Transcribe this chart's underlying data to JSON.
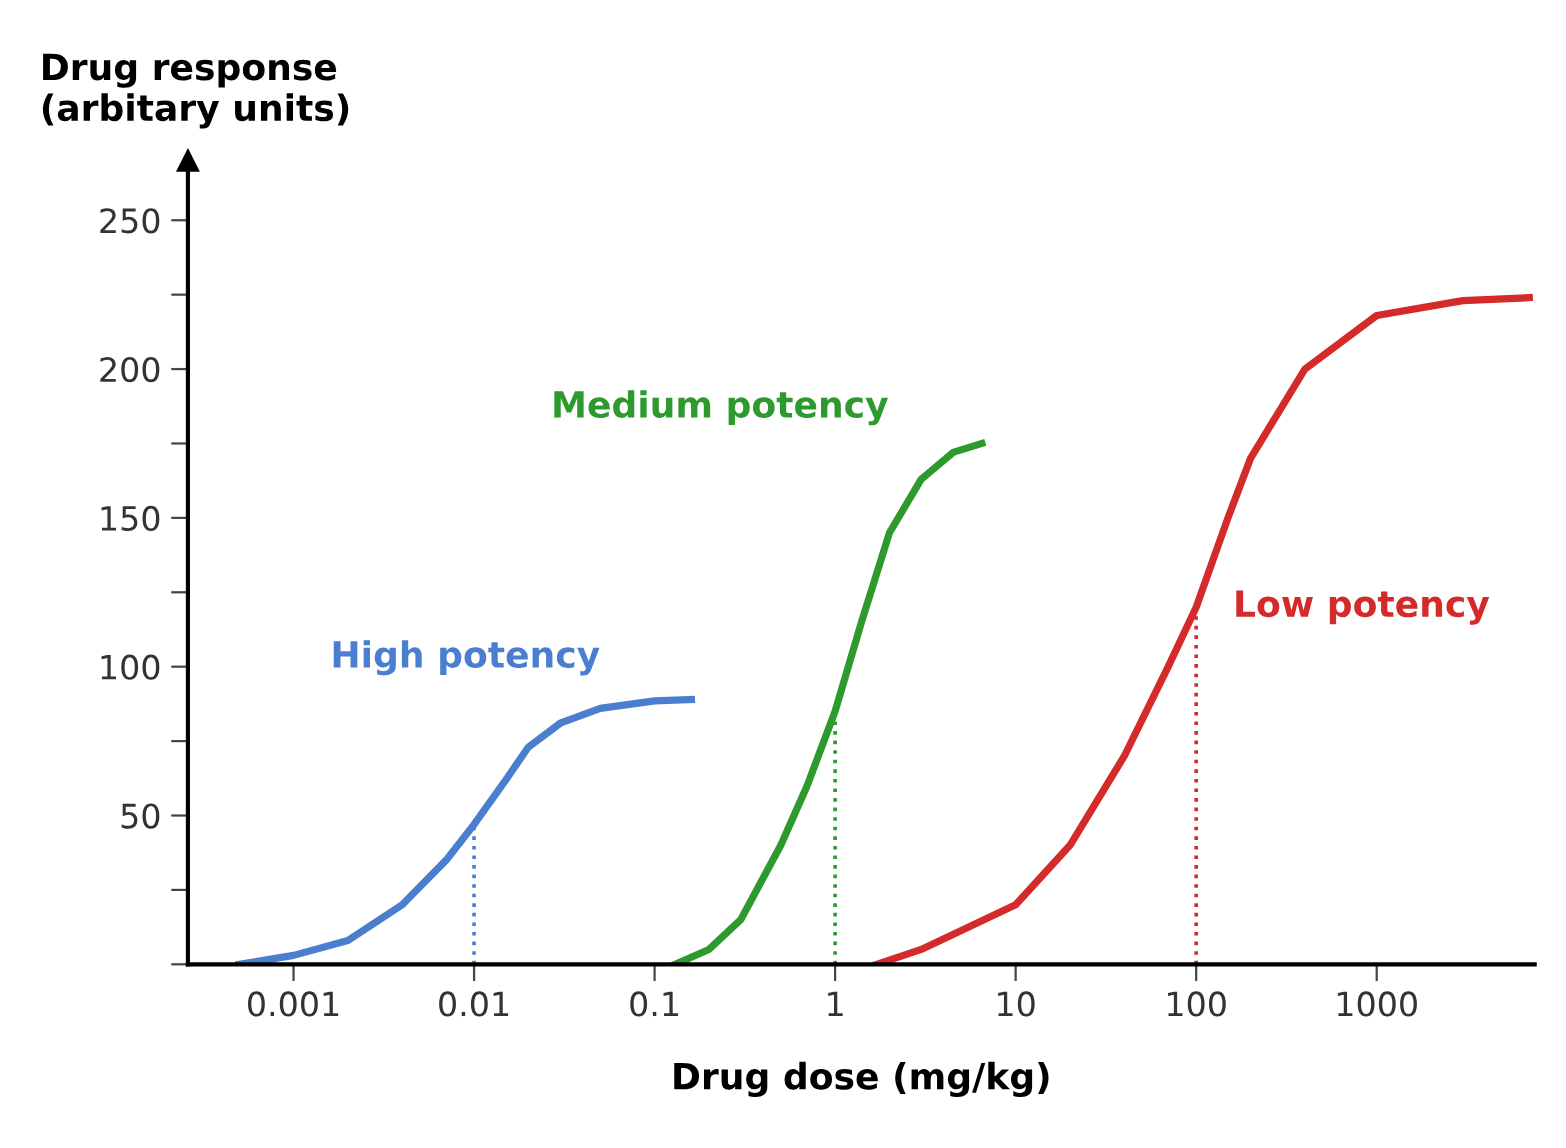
{
  "chart_data": {
    "type": "line",
    "xlabel": "Drug dose (mg/kg)",
    "ylabel": "Drug response\n(arbitary units)",
    "log": "x",
    "grid": false,
    "legend": false,
    "marker": "none",
    "line_style": "solid",
    "xlim": [
      0.00026,
      7500
    ],
    "xticks": [
      0.001,
      0.01,
      0.1,
      1,
      10,
      100,
      1000
    ],
    "ylim": [
      0,
      270
    ],
    "yticks": [
      {
        "value": 0,
        "label": null
      },
      {
        "value": 25,
        "label": null
      },
      50,
      {
        "value": 75,
        "label": null
      },
      100,
      {
        "value": 125,
        "label": null
      },
      150,
      {
        "value": 175,
        "label": null
      },
      200,
      {
        "value": 225,
        "label": null
      },
      250
    ],
    "series": [
      {
        "name": "High potency",
        "color": "#4a7fcf",
        "x": [
          0.0005,
          0.001,
          0.002,
          0.004,
          0.007,
          0.01,
          0.015,
          0.02,
          0.03,
          0.05,
          0.1,
          0.16
        ],
        "values": [
          0,
          3,
          8,
          20,
          35,
          47,
          62,
          73,
          81,
          86,
          88.5,
          89
        ]
      },
      {
        "name": "Medium potency",
        "color": "#2e9a2e",
        "x": [
          0.13,
          0.2,
          0.3,
          0.5,
          0.7,
          1,
          1.4,
          2,
          3,
          4.5,
          6.5
        ],
        "values": [
          0,
          5,
          15,
          40,
          60,
          85,
          115,
          145,
          163,
          172,
          175
        ]
      },
      {
        "name": "Low potency",
        "color": "#d42a2a",
        "x": [
          1.7,
          3,
          10,
          20,
          40,
          70,
          100,
          150,
          200,
          400,
          1000,
          3000,
          7000
        ],
        "values": [
          0,
          5,
          20,
          40,
          70,
          100,
          120,
          150,
          170,
          200,
          218,
          223,
          224
        ]
      }
    ],
    "ref_lines": [
      {
        "axis": "x",
        "value": 0.01,
        "color": "#4a7fcf",
        "line_style": "dotted"
      },
      {
        "axis": "x",
        "value": 1,
        "color": "#2e9a2e",
        "line_style": "dotted"
      },
      {
        "axis": "x",
        "value": 100,
        "color": "#d42a2a",
        "line_style": "dotted"
      }
    ]
  }
}
